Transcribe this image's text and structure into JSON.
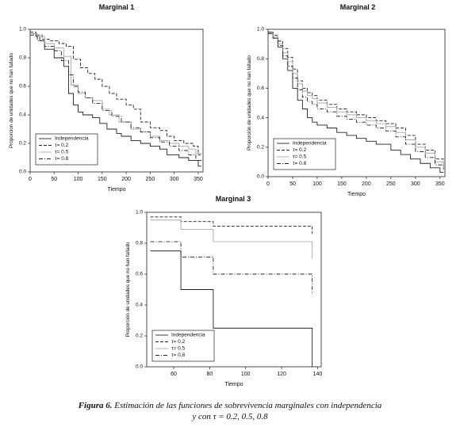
{
  "figure": {
    "caption_label": "Figura 6.",
    "caption_line1": " Estimación de las funciones de sobrevivencia marginales con independencia",
    "caption_line2": "y con τ = 0.2, 0.5, 0.8"
  },
  "chart_data": [
    {
      "type": "line",
      "step": true,
      "title": "Marginal 1",
      "xlabel": "Tiempo",
      "ylabel": "Proporcion de unidades que no han fallado",
      "xlim": [
        0,
        360
      ],
      "ylim": [
        0,
        1.0
      ],
      "xticks": [
        0,
        50,
        100,
        150,
        200,
        250,
        300,
        350
      ],
      "yticks": [
        0.0,
        0.2,
        0.4,
        0.6,
        0.8,
        1.0
      ],
      "legend_position": "bottom-left",
      "legend": [
        "Independencia",
        "τ= 0.2",
        "τ= 0.5",
        "τ= 0.8"
      ],
      "series": [
        {
          "name": "Independencia",
          "style": "solid",
          "color": "#222222",
          "x": [
            0,
            12,
            20,
            30,
            50,
            70,
            80,
            90,
            100,
            110,
            130,
            145,
            160,
            180,
            190,
            210,
            230,
            250,
            270,
            285,
            310,
            330,
            350,
            357
          ],
          "y": [
            0.97,
            0.95,
            0.92,
            0.86,
            0.8,
            0.74,
            0.55,
            0.47,
            0.42,
            0.4,
            0.38,
            0.34,
            0.3,
            0.27,
            0.25,
            0.22,
            0.2,
            0.18,
            0.16,
            0.12,
            0.1,
            0.08,
            0.04,
            0.04
          ]
        },
        {
          "name": "τ= 0.2",
          "style": "dashed",
          "color": "#222222",
          "x": [
            0,
            12,
            25,
            40,
            60,
            75,
            90,
            105,
            120,
            135,
            150,
            165,
            180,
            200,
            215,
            230,
            250,
            270,
            285,
            300,
            320,
            340,
            350,
            357
          ],
          "y": [
            0.98,
            0.96,
            0.93,
            0.92,
            0.9,
            0.88,
            0.79,
            0.73,
            0.69,
            0.65,
            0.6,
            0.55,
            0.51,
            0.47,
            0.44,
            0.35,
            0.31,
            0.29,
            0.25,
            0.22,
            0.2,
            0.18,
            0.12,
            0.12
          ]
        },
        {
          "name": "τ= 0.5",
          "style": "solid",
          "color": "#a8a8a8",
          "x": [
            0,
            15,
            30,
            50,
            70,
            85,
            100,
            115,
            130,
            150,
            165,
            185,
            210,
            230,
            250,
            270,
            290,
            310,
            330,
            345,
            357
          ],
          "y": [
            0.97,
            0.95,
            0.9,
            0.87,
            0.81,
            0.61,
            0.55,
            0.52,
            0.5,
            0.44,
            0.4,
            0.35,
            0.3,
            0.28,
            0.25,
            0.22,
            0.2,
            0.18,
            0.16,
            0.13,
            0.13
          ]
        },
        {
          "name": "τ= 0.8",
          "style": "dashdot",
          "color": "#222222",
          "x": [
            0,
            15,
            30,
            50,
            65,
            80,
            90,
            100,
            115,
            130,
            150,
            170,
            190,
            210,
            230,
            250,
            270,
            290,
            310,
            330,
            345,
            357
          ],
          "y": [
            0.96,
            0.92,
            0.88,
            0.85,
            0.78,
            0.68,
            0.6,
            0.56,
            0.52,
            0.48,
            0.43,
            0.39,
            0.35,
            0.31,
            0.28,
            0.24,
            0.21,
            0.18,
            0.15,
            0.12,
            0.08,
            0.08
          ]
        }
      ]
    },
    {
      "type": "line",
      "step": true,
      "title": "Marginal 2",
      "xlabel": "Tiempo",
      "ylabel": "Proporción de unidades que no han fallado",
      "xlim": [
        0,
        360
      ],
      "ylim": [
        0,
        1.0
      ],
      "xticks": [
        0,
        50,
        100,
        150,
        200,
        250,
        300,
        350
      ],
      "yticks": [
        0.0,
        0.2,
        0.4,
        0.6,
        0.8,
        1.0
      ],
      "legend_position": "bottom-left",
      "legend": [
        "Independencia",
        "τ= 0.2",
        "τ= 0.5",
        "τ= 0.8"
      ],
      "series": [
        {
          "name": "Independencia",
          "style": "solid",
          "color": "#222222",
          "x": [
            0,
            10,
            20,
            30,
            40,
            50,
            60,
            70,
            80,
            90,
            100,
            120,
            140,
            160,
            180,
            200,
            220,
            250,
            270,
            290,
            310,
            330,
            350,
            357
          ],
          "y": [
            0.98,
            0.94,
            0.88,
            0.8,
            0.72,
            0.6,
            0.52,
            0.46,
            0.4,
            0.37,
            0.35,
            0.33,
            0.3,
            0.28,
            0.26,
            0.24,
            0.22,
            0.18,
            0.15,
            0.12,
            0.09,
            0.06,
            0.03,
            0.03
          ]
        },
        {
          "name": "τ= 0.2",
          "style": "dashed",
          "color": "#222222",
          "x": [
            0,
            10,
            20,
            30,
            40,
            50,
            60,
            70,
            80,
            90,
            100,
            120,
            140,
            160,
            180,
            200,
            220,
            240,
            260,
            280,
            300,
            320,
            340,
            357
          ],
          "y": [
            0.98,
            0.96,
            0.92,
            0.87,
            0.81,
            0.73,
            0.65,
            0.6,
            0.57,
            0.55,
            0.52,
            0.49,
            0.46,
            0.44,
            0.42,
            0.4,
            0.38,
            0.36,
            0.33,
            0.28,
            0.22,
            0.18,
            0.12,
            0.08
          ]
        },
        {
          "name": "τ= 0.5",
          "style": "solid",
          "color": "#a8a8a8",
          "x": [
            0,
            10,
            20,
            30,
            40,
            50,
            60,
            70,
            80,
            90,
            100,
            120,
            140,
            160,
            180,
            200,
            220,
            240,
            260,
            280,
            300,
            320,
            340,
            357
          ],
          "y": [
            0.97,
            0.95,
            0.9,
            0.84,
            0.78,
            0.7,
            0.63,
            0.58,
            0.55,
            0.53,
            0.5,
            0.47,
            0.44,
            0.42,
            0.4,
            0.38,
            0.36,
            0.34,
            0.3,
            0.25,
            0.2,
            0.16,
            0.1,
            0.06
          ]
        },
        {
          "name": "τ= 0.8",
          "style": "dashdot",
          "color": "#222222",
          "x": [
            0,
            10,
            20,
            30,
            40,
            50,
            60,
            70,
            80,
            90,
            100,
            120,
            140,
            160,
            180,
            200,
            220,
            240,
            260,
            280,
            300,
            320,
            340,
            357
          ],
          "y": [
            0.97,
            0.94,
            0.89,
            0.82,
            0.75,
            0.67,
            0.59,
            0.54,
            0.51,
            0.49,
            0.46,
            0.44,
            0.41,
            0.39,
            0.37,
            0.35,
            0.33,
            0.31,
            0.27,
            0.22,
            0.17,
            0.13,
            0.08,
            0.05
          ]
        }
      ]
    },
    {
      "type": "line",
      "step": true,
      "title": "Marginal 3",
      "xlabel": "Tiempo",
      "ylabel": "Proporción de unidades que no han fallado",
      "xlim": [
        45,
        142
      ],
      "ylim": [
        0,
        1.0
      ],
      "xticks": [
        60,
        80,
        100,
        120,
        140
      ],
      "yticks": [
        0.0,
        0.2,
        0.4,
        0.6,
        0.8,
        1.0
      ],
      "legend_position": "bottom-left",
      "legend": [
        "Independencia",
        "τ= 0.2",
        "τ= 0.5",
        "τ= 0.8"
      ],
      "series": [
        {
          "name": "Independencia",
          "style": "solid",
          "color": "#222222",
          "x": [
            47,
            64,
            82,
            137
          ],
          "y": [
            0.75,
            0.5,
            0.25,
            0.0
          ]
        },
        {
          "name": "τ= 0.2",
          "style": "dashed",
          "color": "#222222",
          "x": [
            47,
            64,
            82,
            137
          ],
          "y": [
            0.97,
            0.94,
            0.91,
            0.86
          ]
        },
        {
          "name": "τ= 0.5",
          "style": "solid",
          "color": "#a8a8a8",
          "x": [
            47,
            64,
            82,
            137
          ],
          "y": [
            0.95,
            0.89,
            0.81,
            0.7
          ]
        },
        {
          "name": "τ= 0.8",
          "style": "dashdot",
          "color": "#222222",
          "x": [
            47,
            64,
            82,
            137
          ],
          "y": [
            0.81,
            0.71,
            0.6,
            0.47
          ]
        }
      ]
    }
  ]
}
